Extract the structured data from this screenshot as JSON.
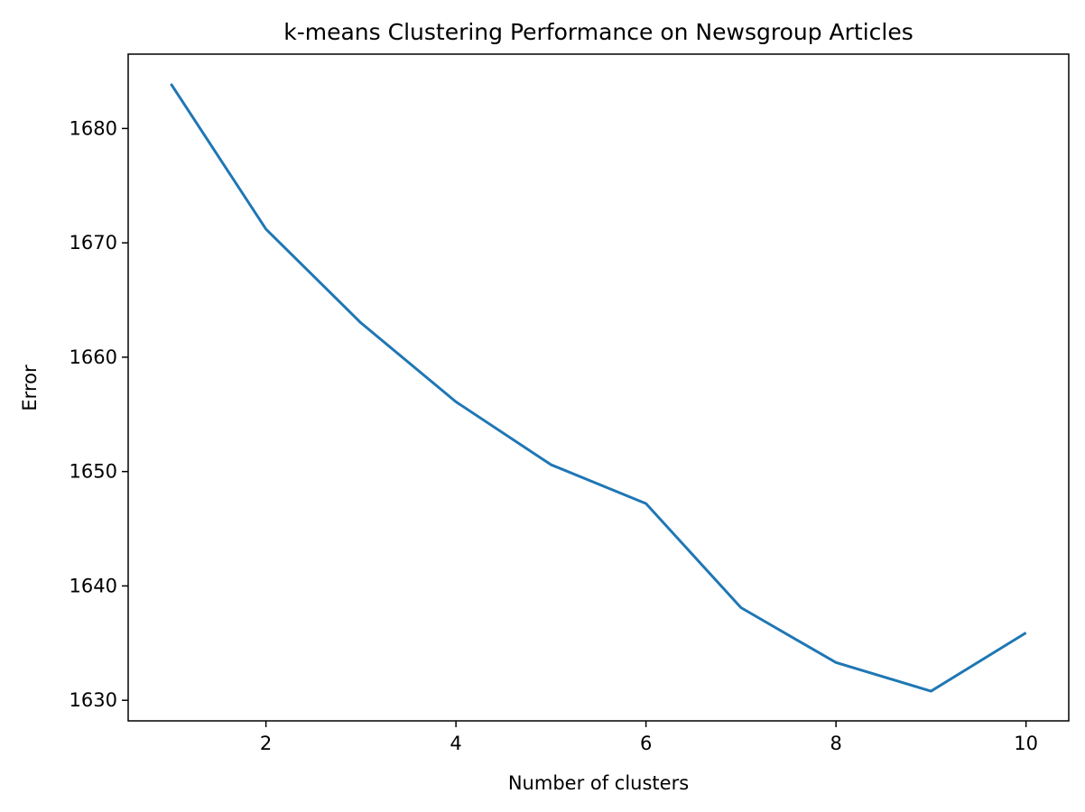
{
  "chart_data": {
    "type": "line",
    "title": "k-means Clustering Performance on Newsgroup Articles",
    "x_label": "Number of clusters",
    "y_label": "Error",
    "x": [
      1,
      2,
      3,
      4,
      5,
      6,
      7,
      8,
      9,
      10
    ],
    "series": [
      {
        "name": "Error",
        "color": "#1f77b4",
        "values": [
          1683.9,
          1671.2,
          1663.0,
          1656.1,
          1650.6,
          1647.2,
          1638.1,
          1633.3,
          1630.8,
          1635.9
        ]
      }
    ],
    "xlim": [
      0.55,
      10.45
    ],
    "ylim": [
      1628.2,
      1686.5
    ],
    "xticks": [
      2,
      4,
      6,
      8,
      10
    ],
    "yticks": [
      1630,
      1640,
      1650,
      1660,
      1670,
      1680
    ],
    "grid": false
  }
}
